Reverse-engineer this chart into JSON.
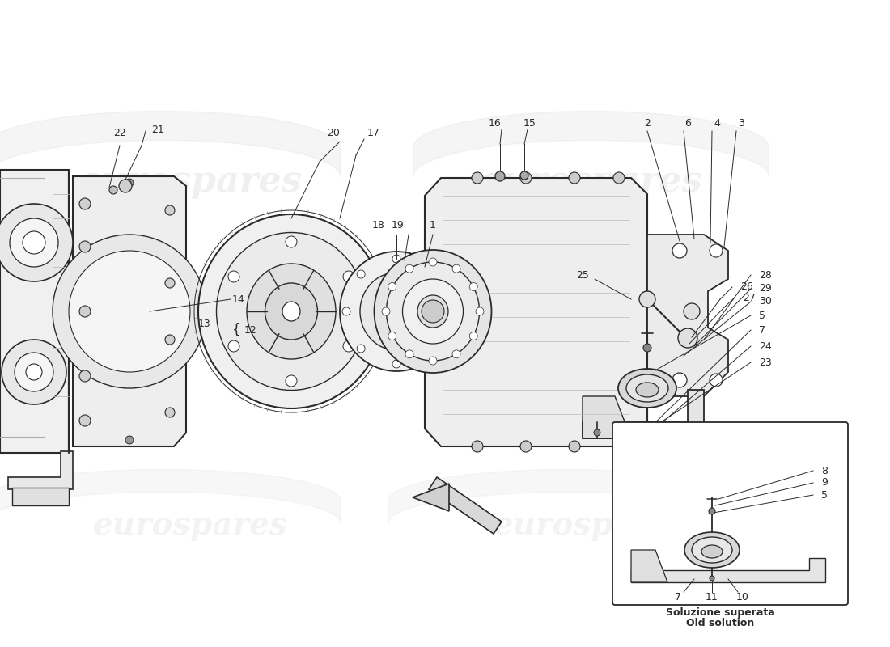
{
  "bg_color": "#ffffff",
  "line_color": "#2a2a2a",
  "watermark_text": "eurospares",
  "watermark_color": "#cccccc",
  "inset_caption_line1": "Soluzione superata",
  "inset_caption_line2": "Old solution",
  "fig_w": 11.0,
  "fig_h": 8.0,
  "dpi": 100
}
